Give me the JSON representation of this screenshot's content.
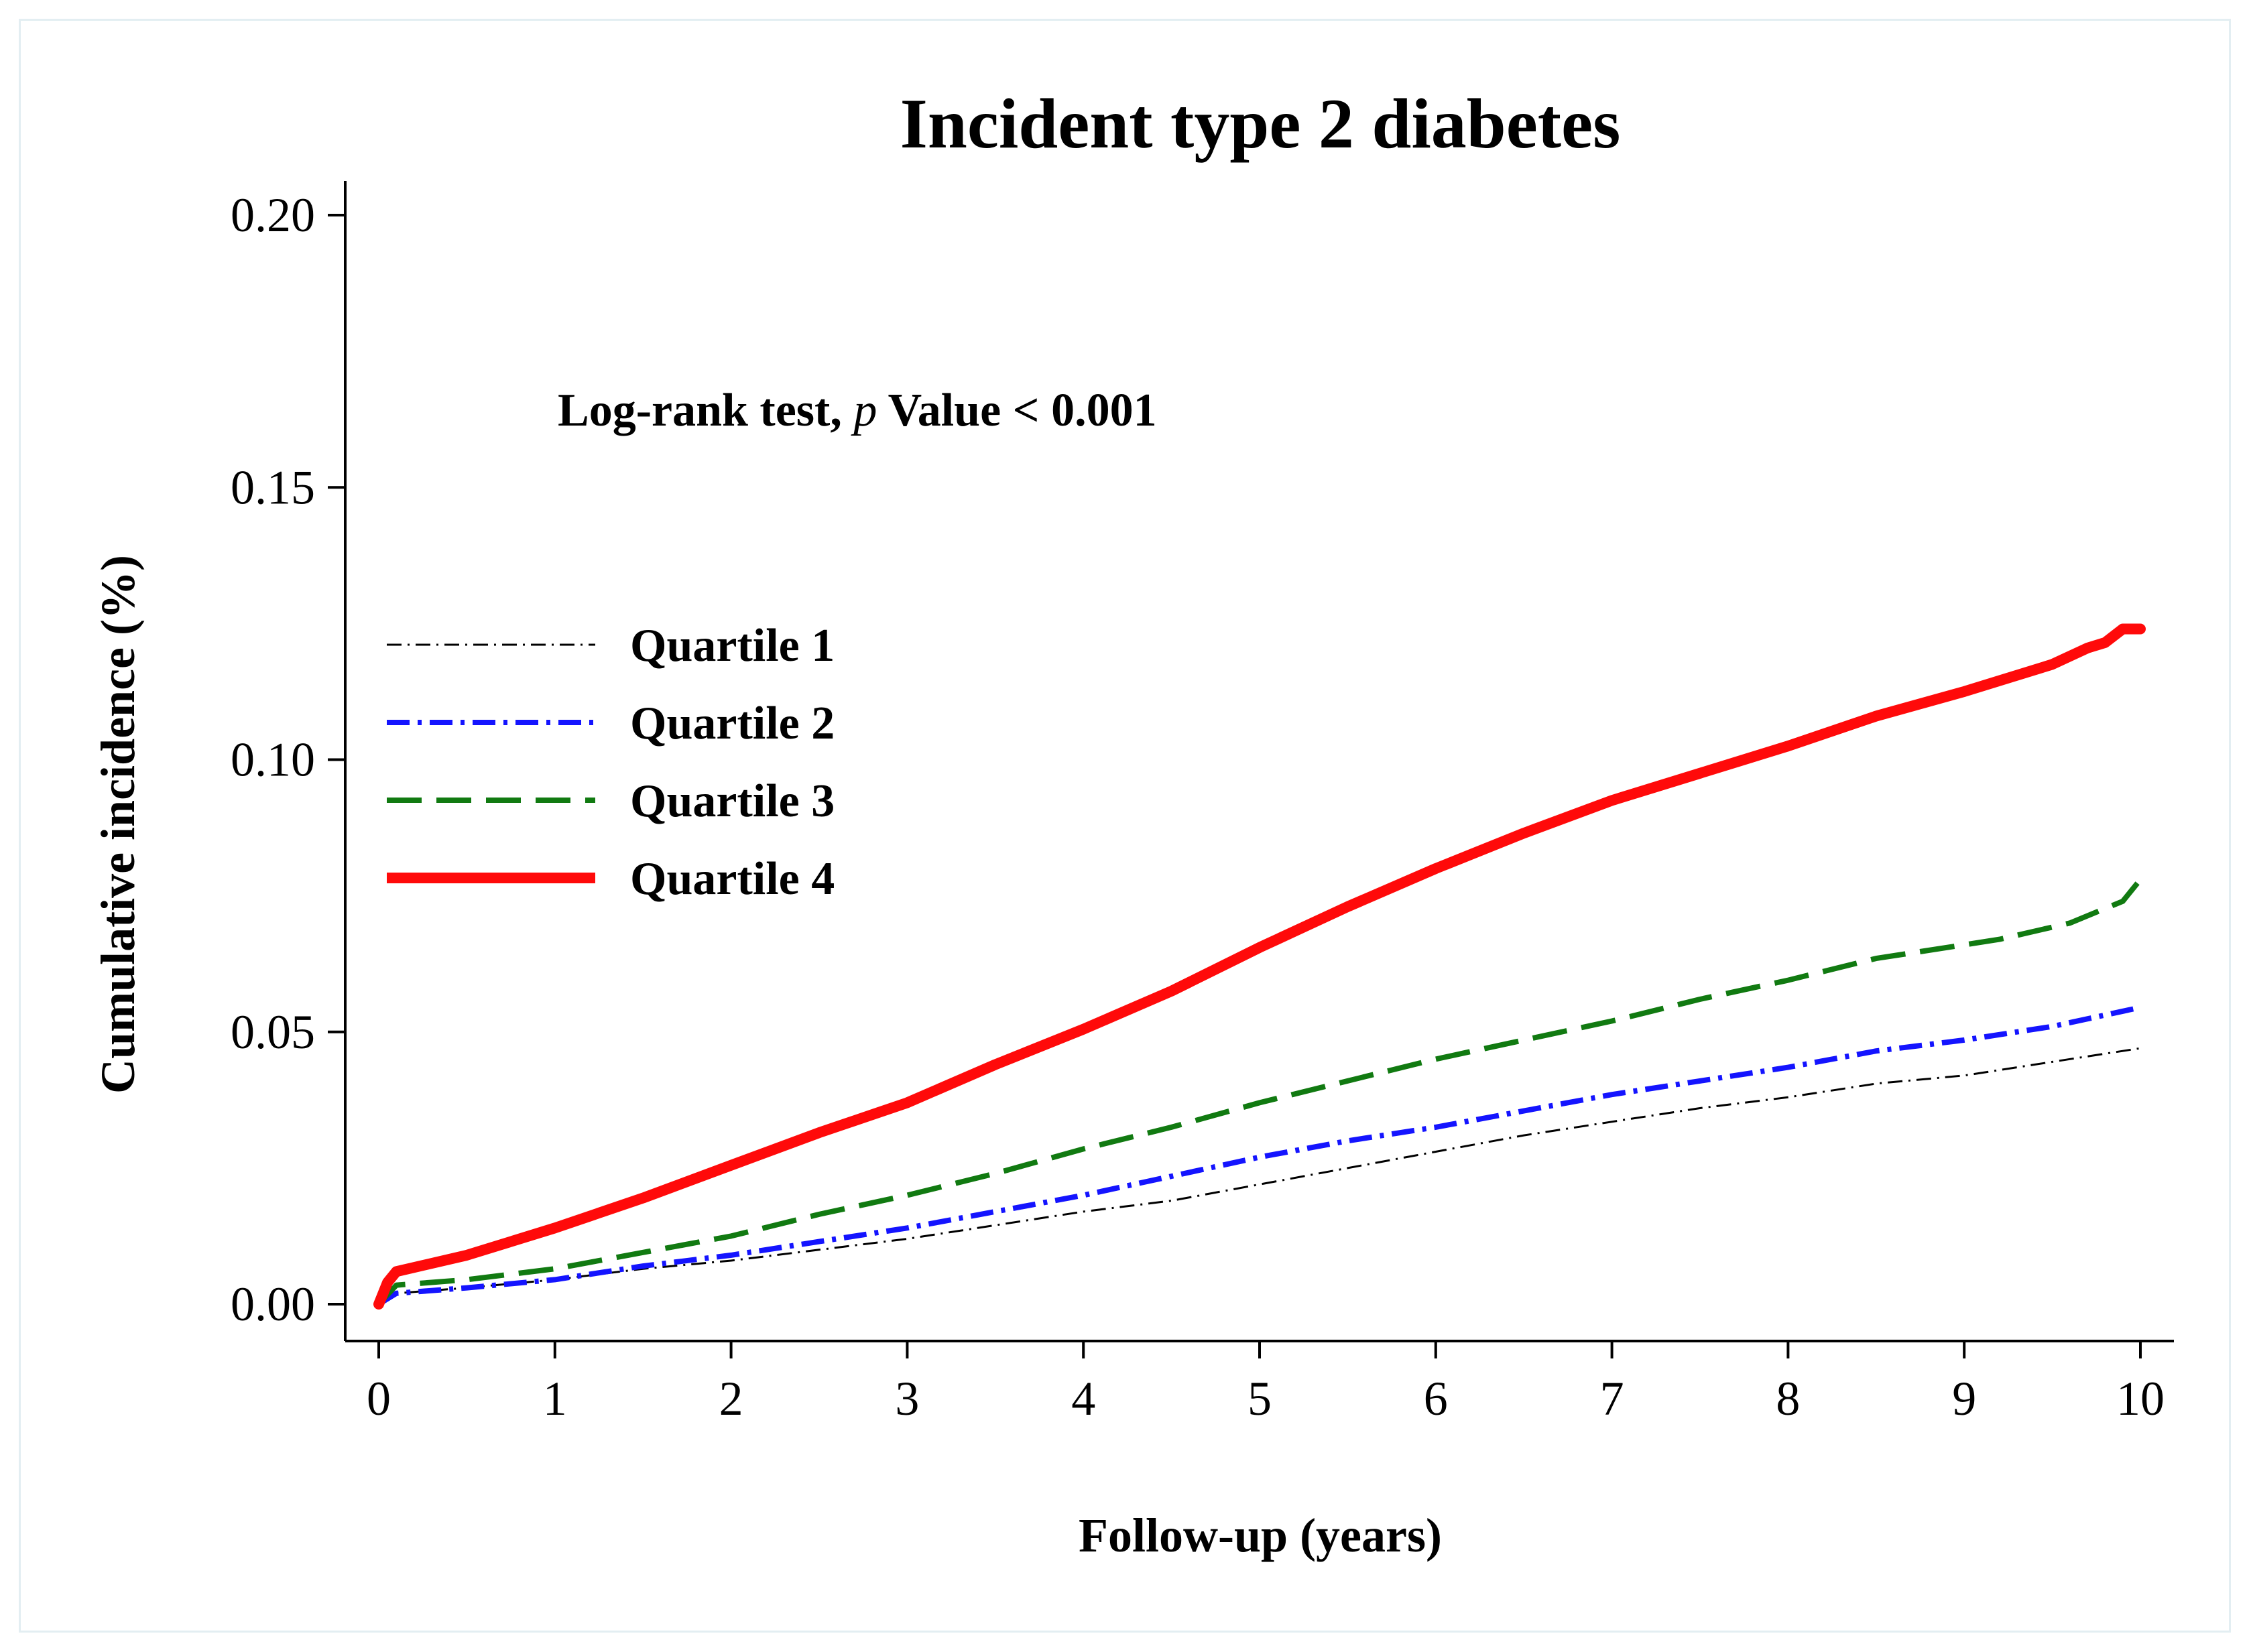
{
  "chart_data": {
    "type": "line",
    "title": "Incident type 2 diabetes",
    "xlabel": "Follow-up (years)",
    "ylabel": "Cumulative incidence (%)",
    "xlim": [
      0,
      10
    ],
    "ylim": [
      0,
      0.2
    ],
    "xticks": [
      0,
      1,
      2,
      3,
      4,
      5,
      6,
      7,
      8,
      9,
      10
    ],
    "xtick_labels": [
      "0",
      "1",
      "2",
      "3",
      "4",
      "5",
      "6",
      "7",
      "8",
      "9",
      "10"
    ],
    "yticks": [
      0,
      0.05,
      0.1,
      0.15,
      0.2
    ],
    "ytick_labels": [
      "0.00",
      "0.05",
      "0.10",
      "0.15",
      "0.20"
    ],
    "grid": false,
    "legend_position": "center-left",
    "annotation": {
      "prefix": "Log-rank test, ",
      "italic": "p",
      "suffix": " Value < 0.001"
    },
    "series": [
      {
        "name": "Quartile 1",
        "color": "#000000",
        "style": "dash-dot-thin",
        "x": [
          0,
          0.1,
          0.5,
          1,
          1.5,
          2,
          2.5,
          3,
          3.5,
          4,
          4.5,
          5,
          5.5,
          6,
          6.5,
          7,
          7.5,
          8,
          8.5,
          9,
          9.5,
          10
        ],
        "y": [
          0,
          0.002,
          0.003,
          0.0045,
          0.0065,
          0.008,
          0.01,
          0.012,
          0.0145,
          0.017,
          0.019,
          0.022,
          0.025,
          0.028,
          0.031,
          0.0335,
          0.036,
          0.038,
          0.0405,
          0.042,
          0.0445,
          0.047
        ]
      },
      {
        "name": "Quartile 2",
        "color": "#1414ff",
        "style": "dash-dot",
        "x": [
          0,
          0.1,
          0.5,
          1,
          1.5,
          2,
          2.5,
          3,
          3.5,
          4,
          4.5,
          5,
          5.5,
          6,
          6.5,
          7,
          7.5,
          8,
          8.5,
          9,
          9.5,
          10
        ],
        "y": [
          0,
          0.002,
          0.003,
          0.0045,
          0.007,
          0.009,
          0.0115,
          0.014,
          0.017,
          0.02,
          0.0235,
          0.027,
          0.03,
          0.0325,
          0.0355,
          0.0385,
          0.041,
          0.0435,
          0.0465,
          0.0485,
          0.051,
          0.0545
        ]
      },
      {
        "name": "Quartile 3",
        "color": "#117a11",
        "style": "long-dash",
        "x": [
          0,
          0.1,
          0.5,
          1,
          1.5,
          2,
          2.5,
          3,
          3.5,
          4,
          4.5,
          5,
          5.5,
          6,
          6.5,
          7,
          7.5,
          8,
          8.5,
          9,
          9.2,
          9.6,
          9.9,
          10
        ],
        "y": [
          0,
          0.0035,
          0.0045,
          0.0065,
          0.0095,
          0.0125,
          0.0165,
          0.02,
          0.024,
          0.0285,
          0.0325,
          0.037,
          0.041,
          0.045,
          0.0485,
          0.052,
          0.056,
          0.0595,
          0.0635,
          0.066,
          0.067,
          0.07,
          0.074,
          0.078
        ]
      },
      {
        "name": "Quartile 4",
        "color": "#ff0a0a",
        "style": "solid-thick",
        "x": [
          0,
          0.05,
          0.1,
          0.5,
          1,
          1.5,
          2,
          2.5,
          3,
          3.5,
          4,
          4.5,
          5,
          5.5,
          6,
          6.5,
          7,
          7.5,
          8,
          8.5,
          9,
          9.5,
          9.7,
          9.8,
          9.9,
          10
        ],
        "y": [
          0,
          0.004,
          0.006,
          0.009,
          0.014,
          0.0195,
          0.0255,
          0.0315,
          0.037,
          0.044,
          0.0505,
          0.0575,
          0.0655,
          0.073,
          0.08,
          0.0865,
          0.0925,
          0.0975,
          0.1025,
          0.108,
          0.1125,
          0.1175,
          0.1205,
          0.1215,
          0.124,
          0.124
        ]
      }
    ]
  }
}
